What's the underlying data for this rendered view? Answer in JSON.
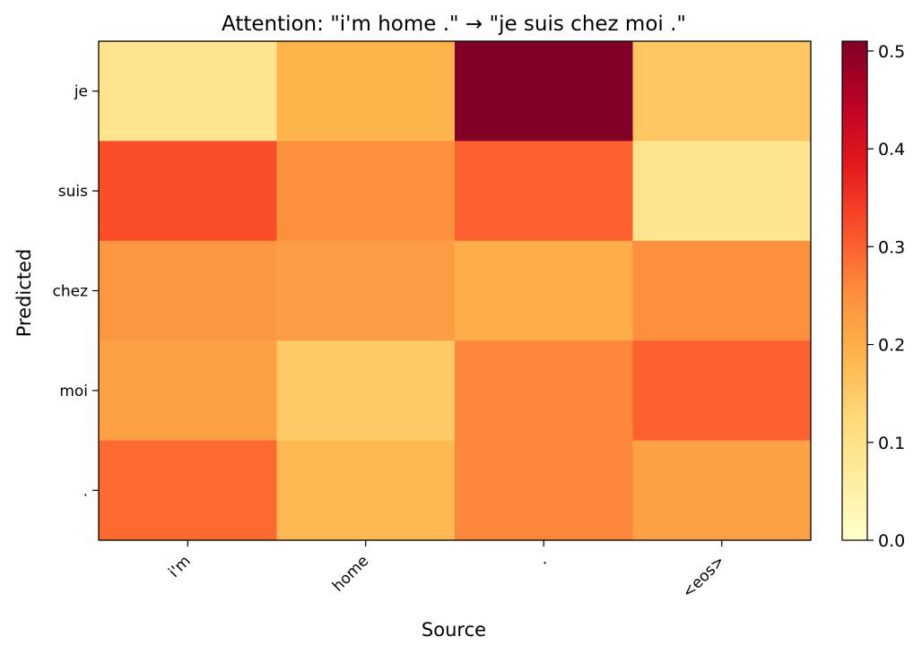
{
  "chart_data": {
    "type": "heatmap",
    "title": "Attention: \"i'm home .\" → \"je suis chez moi .\"",
    "xlabel": "Source",
    "ylabel": "Predicted",
    "x_categories": [
      "i'm",
      "home",
      ".",
      "<eos>"
    ],
    "y_categories": [
      "je",
      "suis",
      "chez",
      "moi",
      "."
    ],
    "values": [
      [
        0.09,
        0.19,
        0.51,
        0.16
      ],
      [
        0.32,
        0.25,
        0.3,
        0.09
      ],
      [
        0.24,
        0.23,
        0.2,
        0.25
      ],
      [
        0.22,
        0.15,
        0.26,
        0.3
      ],
      [
        0.29,
        0.18,
        0.26,
        0.22
      ]
    ],
    "colorbar": {
      "range": [
        0.0,
        0.51
      ],
      "ticks": [
        0.0,
        0.1,
        0.2,
        0.3,
        0.4,
        0.5
      ],
      "tick_labels": [
        "0.0",
        "0.1",
        "0.2",
        "0.3",
        "0.4",
        "0.5"
      ],
      "colormap": "YlOrRd"
    },
    "grid": false
  }
}
